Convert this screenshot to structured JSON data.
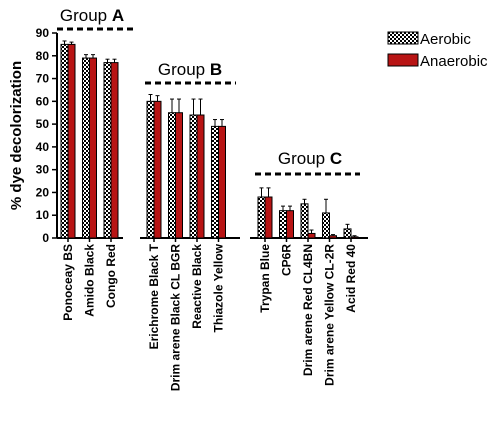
{
  "chart_data": {
    "type": "bar",
    "ylabel": "% dye decolorization",
    "ylim": [
      0,
      90
    ],
    "yticks": [
      0,
      10,
      20,
      30,
      40,
      50,
      60,
      70,
      80,
      90
    ],
    "series": [
      {
        "name": "Aerobic",
        "pattern": "checker"
      },
      {
        "name": "Anaerobic",
        "color": "#b81414"
      }
    ],
    "groups": [
      {
        "label_plain": "Group ",
        "label_bold": "A",
        "categories": [
          {
            "name": "Ponoceay BS",
            "values": [
              85,
              85
            ],
            "errors": [
              1.5,
              1
            ]
          },
          {
            "name": "Amido Black",
            "values": [
              79,
              79
            ],
            "errors": [
              1.5,
              1.5
            ]
          },
          {
            "name": "Congo Red",
            "values": [
              77,
              77
            ],
            "errors": [
              1.5,
              1.5
            ]
          }
        ]
      },
      {
        "label_plain": "Group ",
        "label_bold": "B",
        "categories": [
          {
            "name": "Erichrome Black T",
            "values": [
              60,
              60
            ],
            "errors": [
              3,
              2.5
            ]
          },
          {
            "name": "Drim arene Black CL BGR",
            "values": [
              55,
              55
            ],
            "errors": [
              6,
              6
            ]
          },
          {
            "name": "Reactive Black",
            "values": [
              54,
              54
            ],
            "errors": [
              7,
              7
            ]
          },
          {
            "name": "Thiazole Yellow",
            "values": [
              49,
              49
            ],
            "errors": [
              3,
              3
            ]
          }
        ]
      },
      {
        "label_plain": "Group ",
        "label_bold": "C",
        "categories": [
          {
            "name": "Trypan Blue",
            "values": [
              18,
              18
            ],
            "errors": [
              4,
              4
            ]
          },
          {
            "name": "CP6R",
            "values": [
              12,
              12
            ],
            "errors": [
              2,
              2
            ]
          },
          {
            "name": "Drim arene Red CL4BN",
            "values": [
              15,
              2
            ],
            "errors": [
              2,
              1.5
            ]
          },
          {
            "name": "Drim arene Yellow CL-2R",
            "values": [
              11,
              1
            ],
            "errors": [
              6,
              0.5
            ]
          },
          {
            "name": "Acid Red 40",
            "values": [
              4,
              0.5
            ],
            "errors": [
              2,
              0.5
            ]
          }
        ]
      }
    ],
    "legend_position": "top-right",
    "grid": false
  }
}
